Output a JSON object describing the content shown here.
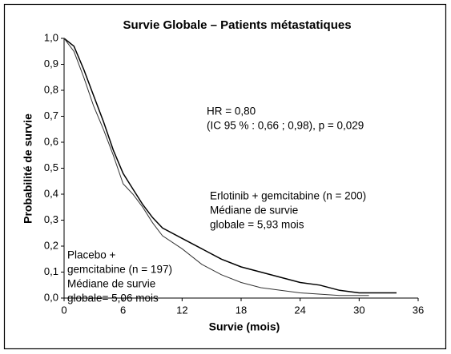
{
  "chart_data": {
    "type": "line",
    "title": "Survie Globale – Patients métastatiques",
    "xlabel": "Survie (mois)",
    "ylabel": "Probabilité de survie",
    "xlim": [
      0,
      36
    ],
    "xticks": [
      0,
      6,
      12,
      18,
      24,
      30,
      36
    ],
    "ylim": [
      0,
      1
    ],
    "yticks": [
      {
        "value": 0,
        "label": "0,0"
      },
      {
        "value": 0.1,
        "label": "0,1"
      },
      {
        "value": 0.2,
        "label": "0,2"
      },
      {
        "value": 0.3,
        "label": "0,3"
      },
      {
        "value": 0.4,
        "label": "0,4"
      },
      {
        "value": 0.5,
        "label": "0,5"
      },
      {
        "value": 0.6,
        "label": "0,6"
      },
      {
        "value": 0.7,
        "label": "0,7"
      },
      {
        "value": 0.8,
        "label": "0,8"
      },
      {
        "value": 0.9,
        "label": "0,9"
      },
      {
        "value": 1,
        "label": "1,0"
      }
    ],
    "series": [
      {
        "color": "#000000",
        "x": [
          0,
          1,
          2,
          3,
          4,
          5,
          6,
          7,
          8,
          9,
          10,
          12,
          14,
          16,
          18,
          20,
          22,
          24,
          26,
          28,
          30,
          33.8
        ],
        "values": [
          1,
          0.97,
          0.88,
          0.78,
          0.68,
          0.57,
          0.48,
          0.42,
          0.36,
          0.31,
          0.27,
          0.23,
          0.19,
          0.15,
          0.12,
          0.1,
          0.08,
          0.06,
          0.05,
          0.03,
          0.02,
          0.02
        ]
      },
      {
        "color": "#333333",
        "x": [
          0,
          1,
          2,
          3,
          4,
          5,
          6,
          7,
          8,
          9,
          10,
          12,
          14,
          16,
          18,
          20,
          22,
          24,
          28,
          31
        ],
        "values": [
          1,
          0.95,
          0.85,
          0.74,
          0.65,
          0.55,
          0.44,
          0.4,
          0.35,
          0.29,
          0.24,
          0.19,
          0.13,
          0.09,
          0.06,
          0.04,
          0.03,
          0.02,
          0.01,
          0.01
        ]
      }
    ],
    "annotations": [
      {
        "lines": [
          "HR = 0,80",
          "(IC 95 % : 0,66 ; 0,98), p = 0,029"
        ]
      },
      {
        "lines": [
          "Erlotinib + gemcitabine (n = 200)",
          "Médiane de survie",
          "globale = 5,93 mois"
        ]
      },
      {
        "lines": [
          "Placebo +",
          "gemcitabine (n = 197)",
          "Médiane de survie",
          "globale= 5,06 mois"
        ]
      }
    ]
  }
}
